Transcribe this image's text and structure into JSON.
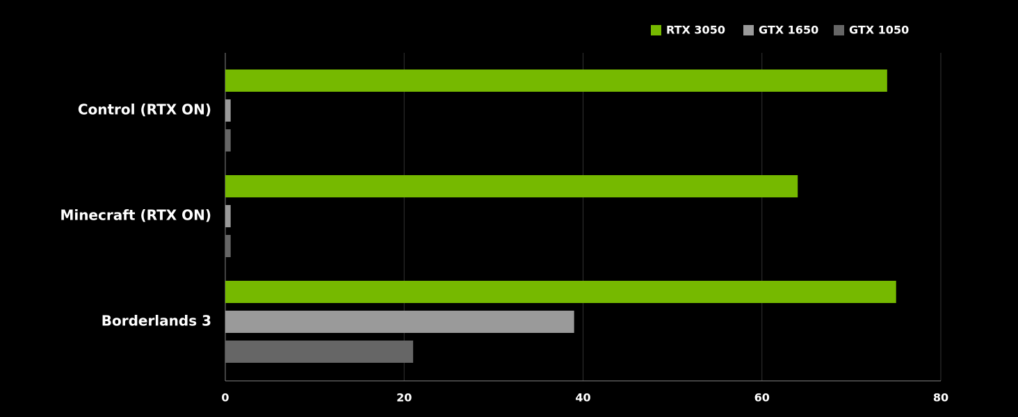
{
  "chart_data": {
    "type": "bar",
    "orientation": "horizontal",
    "categories": [
      "Control (RTX ON)",
      "Minecraft (RTX ON)",
      "Borderlands 3"
    ],
    "series": [
      {
        "name": "RTX 3050",
        "color": "#76b900",
        "values": [
          74,
          64,
          75
        ]
      },
      {
        "name": "GTX 1650",
        "color": "#9a9a9a",
        "values": [
          0.6,
          0.6,
          39
        ]
      },
      {
        "name": "GTX 1050",
        "color": "#666666",
        "values": [
          0.6,
          0.6,
          21
        ]
      }
    ],
    "xlim": [
      0,
      80
    ],
    "xticks": [
      0,
      20,
      40,
      60,
      80
    ],
    "grid": true,
    "legend": "top-right"
  }
}
